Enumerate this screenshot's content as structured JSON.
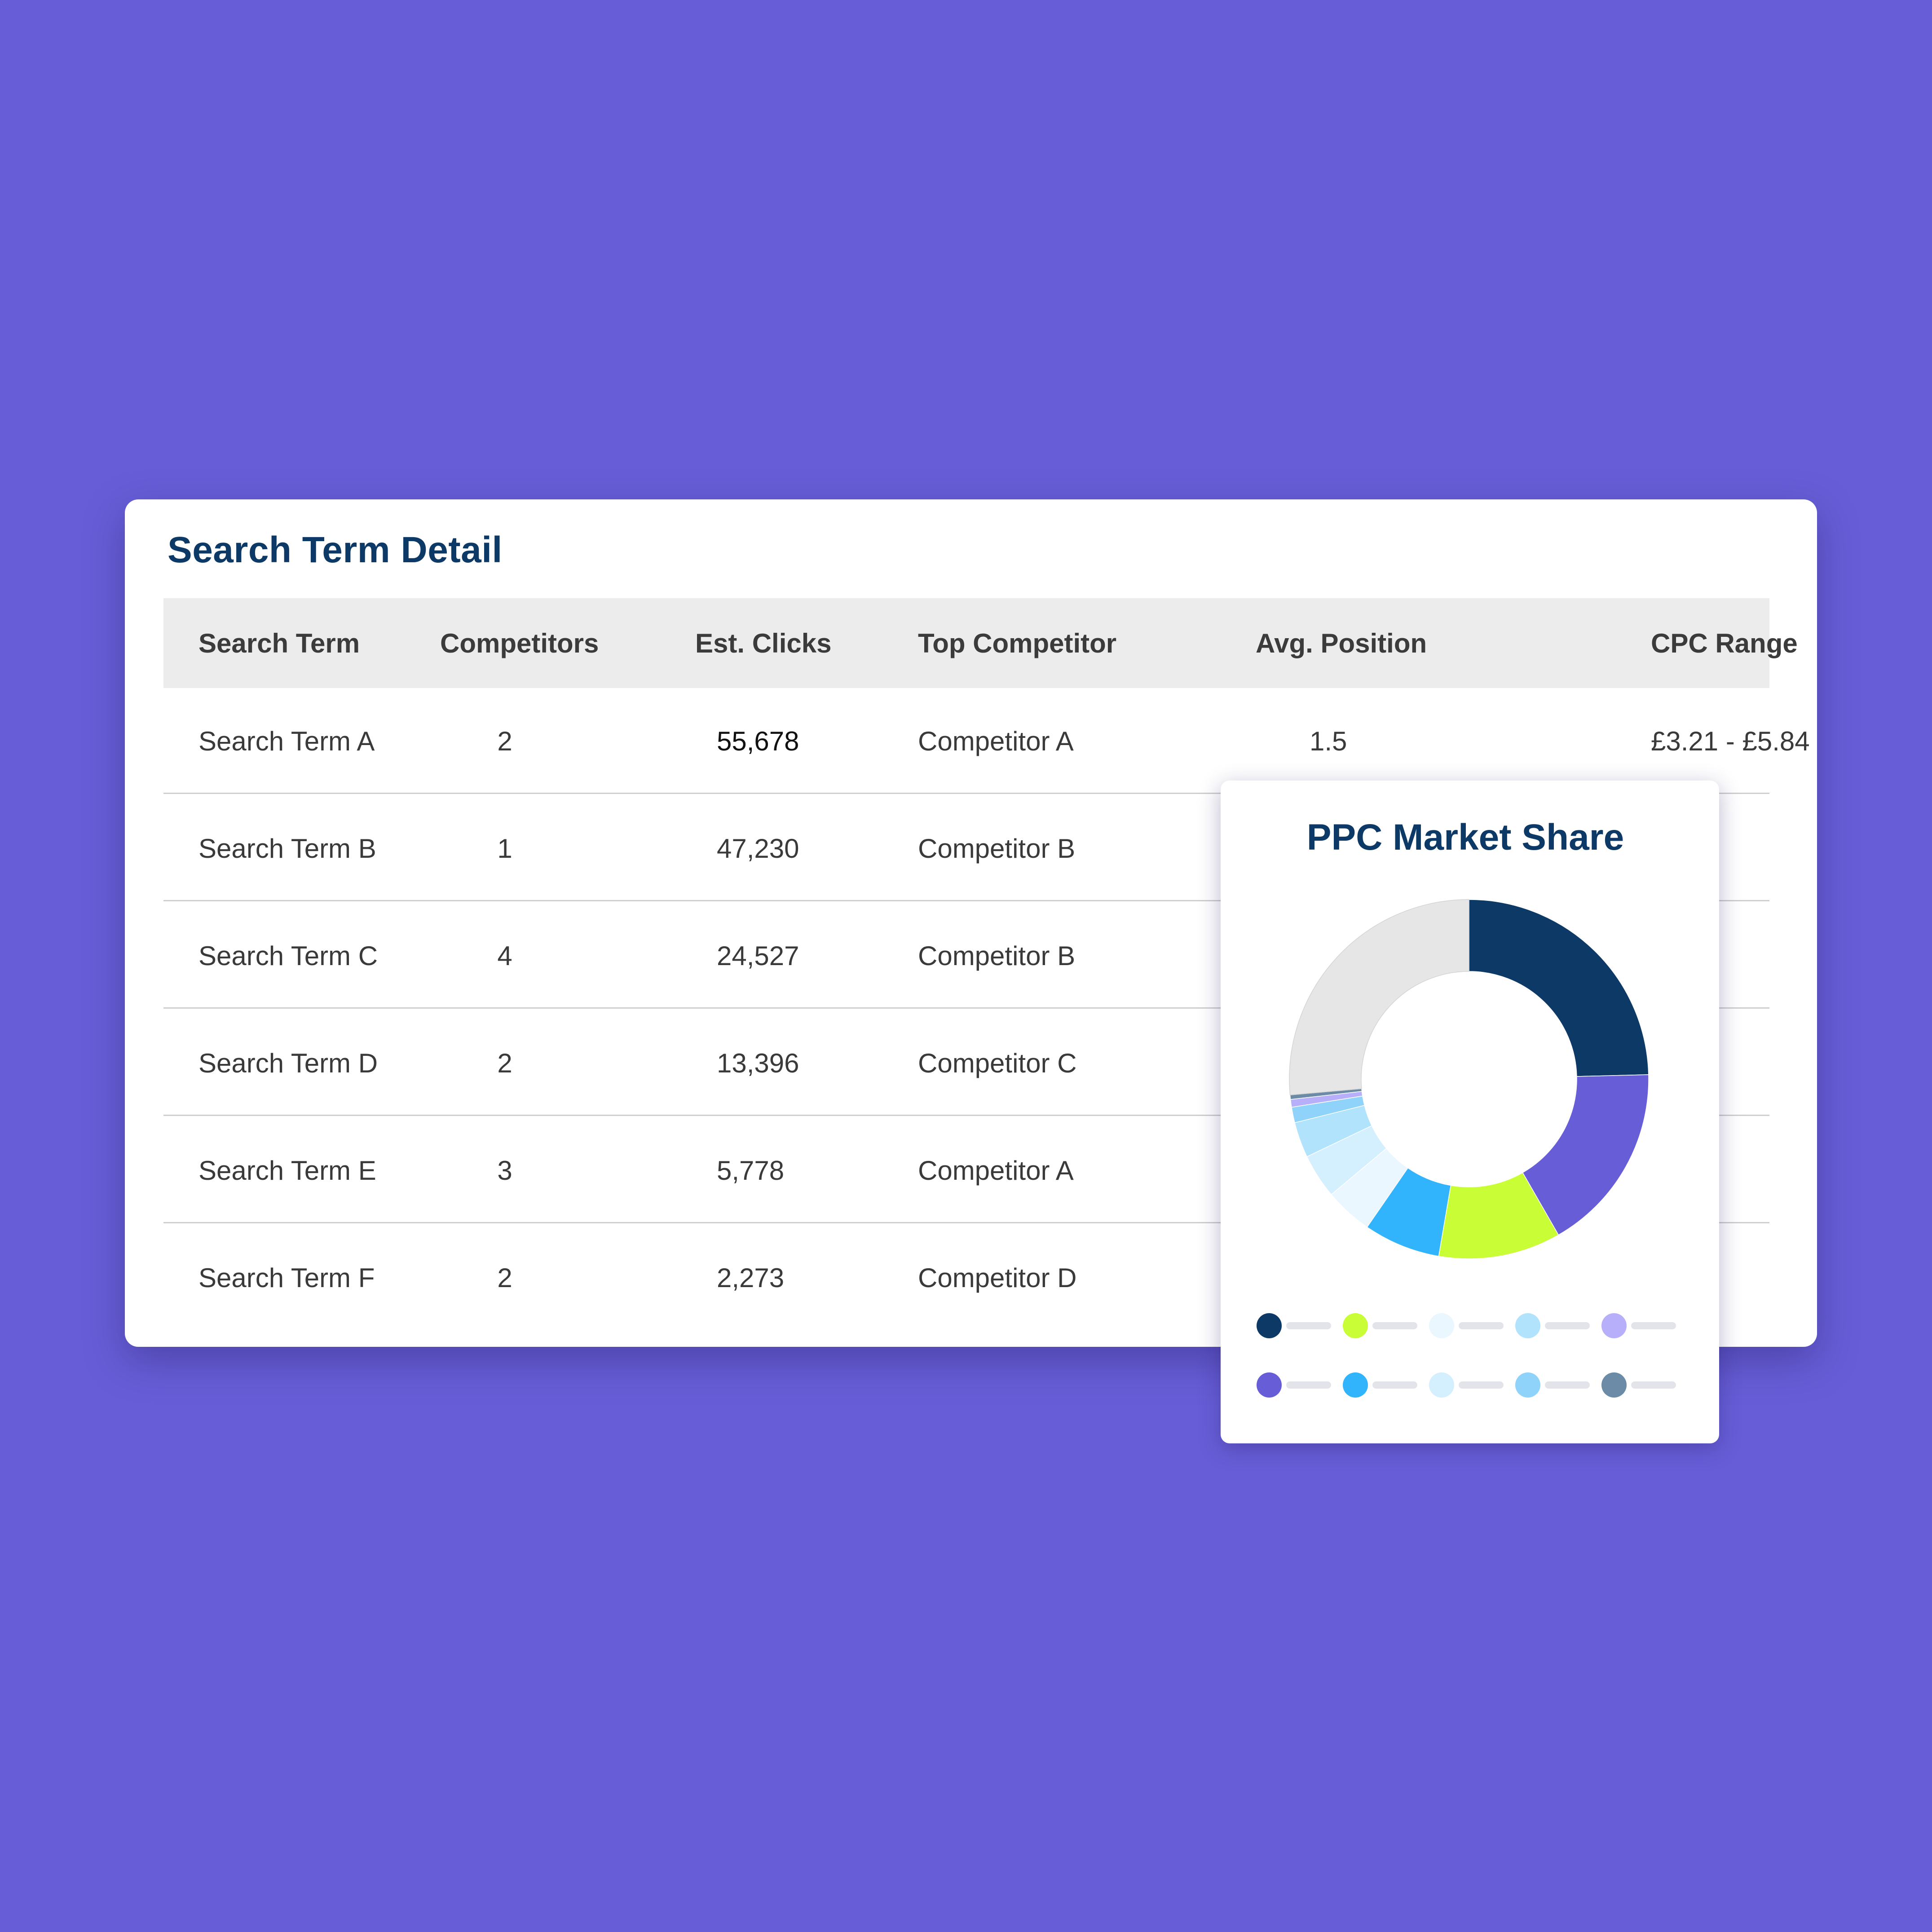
{
  "table": {
    "title": "Search Term Detail",
    "headers": {
      "search_term": "Search Term",
      "competitors": "Competitors",
      "est_clicks": "Est. Clicks",
      "top_competitor": "Top Competitor",
      "avg_position": "Avg. Position",
      "cpc_range": "CPC Range"
    },
    "rows": [
      {
        "term": "Search Term A",
        "competitors": "2",
        "clicks": "55,678",
        "top": "Competitor A",
        "position": "1.5",
        "cpc": "£3.21 - £5.84"
      },
      {
        "term": "Search Term B",
        "competitors": "1",
        "clicks": "47,230",
        "top": "Competitor B"
      },
      {
        "term": "Search Term C",
        "competitors": "4",
        "clicks": "24,527",
        "top": "Competitor B"
      },
      {
        "term": "Search Term D",
        "competitors": "2",
        "clicks": "13,396",
        "top": "Competitor C"
      },
      {
        "term": "Search Term E",
        "competitors": "3",
        "clicks": "5,778",
        "top": "Competitor A"
      },
      {
        "term": "Search Term F",
        "competitors": "2",
        "clicks": "2,273",
        "top": "Competitor D"
      }
    ]
  },
  "market_share": {
    "title": "PPC Market Share",
    "legend_colors": [
      [
        "#0c3966",
        "#c9fd35",
        "#eaf7fe",
        "#b2e3fd",
        "#b7affa"
      ],
      [
        "#675ed7",
        "#31b4fb",
        "#d4effd",
        "#8fd3fb",
        "#6b8ba6"
      ]
    ]
  },
  "chart_data": {
    "type": "pie",
    "variant": "donut",
    "title": "PPC Market Share",
    "slices": [
      {
        "value": 24.6,
        "color": "#0c3966"
      },
      {
        "value": 17.1,
        "color": "#675ed7"
      },
      {
        "value": 11.0,
        "color": "#c9fd35"
      },
      {
        "value": 6.9,
        "color": "#31b4fb"
      },
      {
        "value": 4.3,
        "color": "#eaf7fe"
      },
      {
        "value": 4.0,
        "color": "#d4effd"
      },
      {
        "value": 3.2,
        "color": "#b2e3fd"
      },
      {
        "value": 1.4,
        "color": "#8fd3fb"
      },
      {
        "value": 0.7,
        "color": "#b7affa"
      },
      {
        "value": 0.4,
        "color": "#6b8ba6"
      },
      {
        "value": 26.4,
        "color": "#e6e6e6"
      }
    ]
  }
}
